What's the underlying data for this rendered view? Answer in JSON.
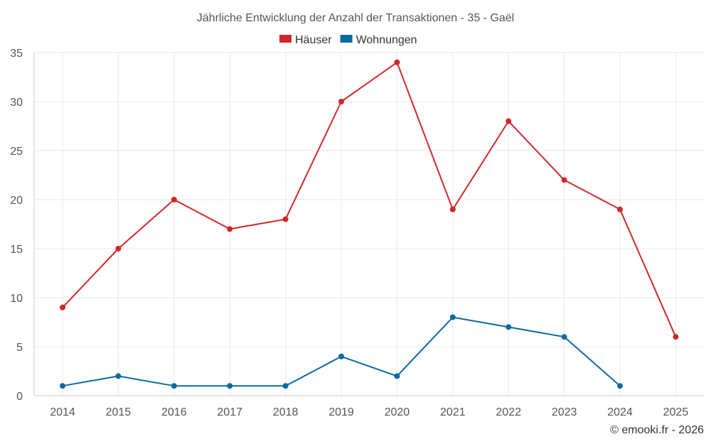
{
  "chart_data": {
    "type": "line",
    "title": "Jährliche Entwicklung der Anzahl der Transaktionen - 35 - Gaël",
    "categories": [
      "2014",
      "2015",
      "2016",
      "2017",
      "2018",
      "2019",
      "2020",
      "2021",
      "2022",
      "2023",
      "2024",
      "2025"
    ],
    "series": [
      {
        "name": "Häuser",
        "color": "#d0282b",
        "values": [
          9,
          15,
          20,
          17,
          18,
          30,
          34,
          19,
          28,
          22,
          19,
          6
        ]
      },
      {
        "name": "Wohnungen",
        "color": "#0b6aa0",
        "values": [
          1,
          2,
          1,
          1,
          1,
          4,
          2,
          8,
          7,
          6,
          1,
          null
        ]
      }
    ],
    "ylim": [
      0,
      35
    ],
    "yticks": [
      0,
      5,
      10,
      15,
      20,
      25,
      30,
      35
    ],
    "grid": true,
    "legend": "top-center",
    "xlabel": "",
    "ylabel": ""
  },
  "credit": "© emooki.fr - 2026"
}
